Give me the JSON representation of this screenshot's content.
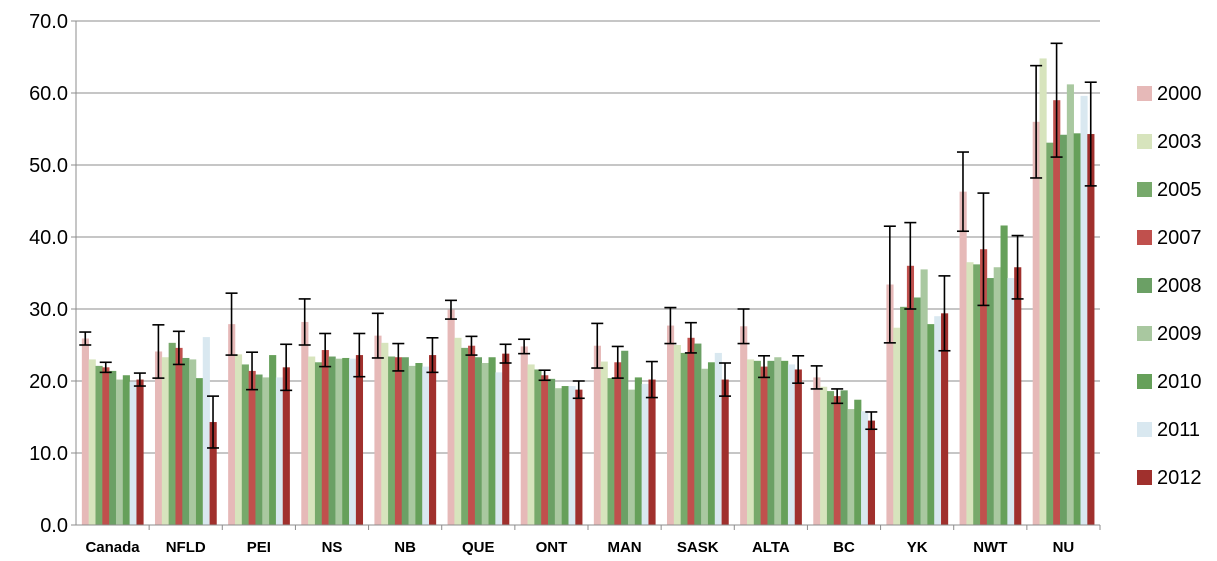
{
  "chart_data": {
    "type": "bar",
    "title": "",
    "xlabel": "",
    "ylabel": "",
    "ylim": [
      0,
      70
    ],
    "ytick_step": 10,
    "ytick_labels": [
      "0.0",
      "10.0",
      "20.0",
      "30.0",
      "40.0",
      "50.0",
      "60.0",
      "70.0"
    ],
    "grid": "horizontal",
    "legend_position": "right",
    "categories": [
      "Canada",
      "NFLD",
      "PEI",
      "NS",
      "NB",
      "QUE",
      "ONT",
      "MAN",
      "SASK",
      "ALTA",
      "BC",
      "YK",
      "NWT",
      "NU"
    ],
    "series": [
      {
        "name": "2000",
        "color": "#e6b9b8",
        "values": [
          25.9,
          24.1,
          27.9,
          28.2,
          26.3,
          29.9,
          24.8,
          24.9,
          27.7,
          27.6,
          20.5,
          33.4,
          46.3,
          56.0
        ],
        "error": [
          0.9,
          3.7,
          4.3,
          3.2,
          3.1,
          1.3,
          1.0,
          3.1,
          2.5,
          2.4,
          1.6,
          8.1,
          5.5,
          7.8
        ]
      },
      {
        "name": "2003",
        "color": "#d7e4bd",
        "values": [
          23.0,
          23.3,
          23.7,
          23.4,
          25.3,
          26.0,
          22.3,
          22.7,
          25.0,
          23.0,
          19.2,
          27.4,
          36.5,
          64.8
        ],
        "error": null
      },
      {
        "name": "2005",
        "color": "#77a96b",
        "values": [
          22.1,
          25.3,
          22.3,
          22.6,
          23.4,
          24.6,
          21.6,
          20.4,
          23.9,
          22.8,
          18.6,
          30.3,
          36.2,
          53.1
        ],
        "error": null
      },
      {
        "name": "2007",
        "color": "#c0504d",
        "values": [
          21.9,
          24.6,
          21.4,
          24.3,
          23.3,
          24.9,
          20.8,
          22.6,
          26.0,
          22.0,
          17.9,
          36.0,
          38.3,
          59.0
        ],
        "error": [
          0.7,
          2.3,
          2.6,
          2.3,
          1.9,
          1.3,
          0.7,
          2.2,
          2.1,
          1.5,
          1.0,
          6.0,
          7.8,
          7.9
        ]
      },
      {
        "name": "2008",
        "color": "#6ba065",
        "values": [
          21.4,
          23.2,
          20.9,
          23.4,
          23.3,
          23.3,
          20.3,
          24.2,
          25.2,
          22.8,
          18.7,
          31.6,
          34.3,
          54.2
        ],
        "error": null
      },
      {
        "name": "2009",
        "color": "#a9c8a0",
        "values": [
          20.2,
          23.0,
          20.5,
          23.1,
          22.1,
          22.5,
          19.0,
          18.8,
          21.7,
          23.3,
          16.1,
          35.5,
          35.8,
          61.2
        ],
        "error": null
      },
      {
        "name": "2010",
        "color": "#66a05a",
        "values": [
          20.8,
          20.4,
          23.6,
          23.2,
          22.5,
          23.3,
          19.3,
          20.5,
          22.6,
          22.8,
          17.4,
          27.9,
          41.6,
          54.4
        ],
        "error": null
      },
      {
        "name": "2011",
        "color": "#d9e8f0",
        "values": [
          19.9,
          26.1,
          20.5,
          23.1,
          22.0,
          21.2,
          19.3,
          19.6,
          23.9,
          22.3,
          15.8,
          29.0,
          34.3,
          59.6
        ],
        "error": null
      },
      {
        "name": "2012",
        "color": "#a0302d",
        "values": [
          20.2,
          14.3,
          21.9,
          23.6,
          23.6,
          23.8,
          18.8,
          20.2,
          20.2,
          21.6,
          14.5,
          29.4,
          35.8,
          54.3
        ],
        "error": [
          0.9,
          3.6,
          3.2,
          3.0,
          2.4,
          1.3,
          1.2,
          2.5,
          2.3,
          1.9,
          1.2,
          5.2,
          4.4,
          7.2
        ]
      }
    ]
  }
}
